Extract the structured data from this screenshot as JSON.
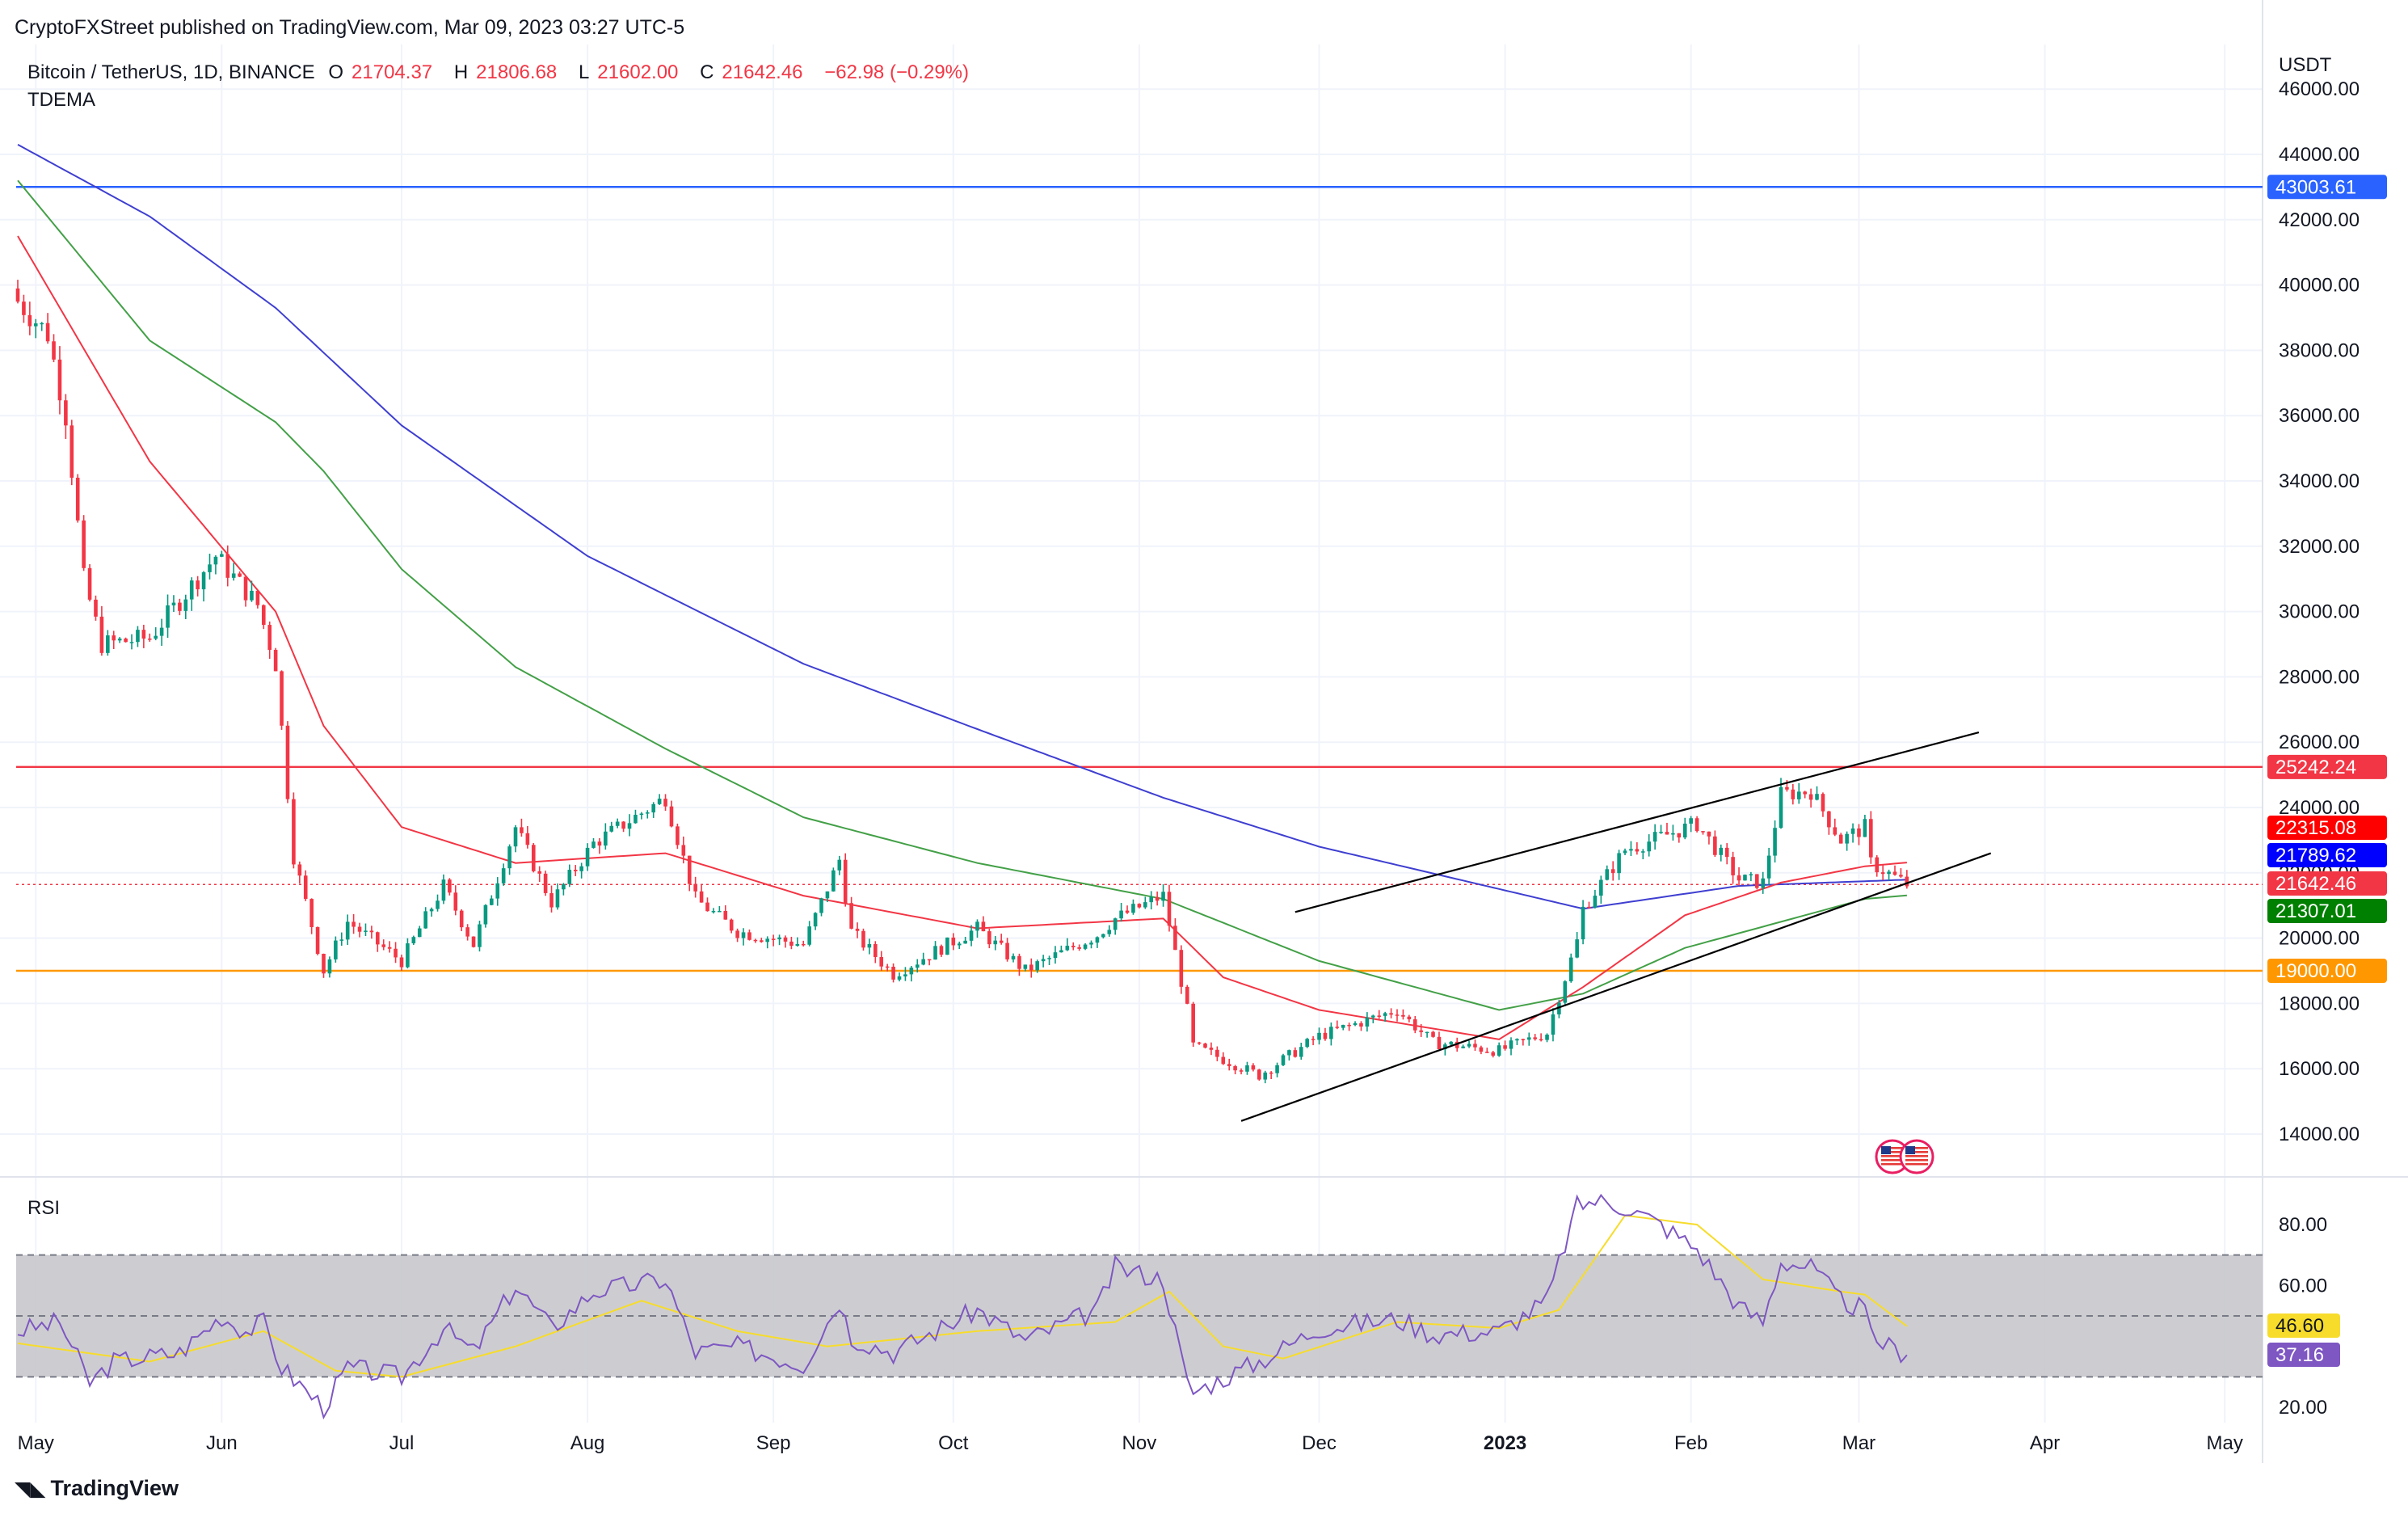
{
  "header": {
    "publisher": "CryptoFXStreet published on TradingView.com, Mar 09, 2023 03:27 UTC-5",
    "symbol": "Bitcoin / TetherUS, 1D, BINANCE",
    "open_label": "O",
    "open": "21704.37",
    "high_label": "H",
    "high": "21806.68",
    "low_label": "L",
    "low": "21602.00",
    "close_label": "C",
    "close": "21642.46",
    "change": "−62.98 (−0.29%)",
    "indicator": "TDEMA",
    "currency": "USDT"
  },
  "rsi_panel": {
    "name": "RSI"
  },
  "footer": {
    "brand": "TradingView"
  },
  "colors": {
    "up": "#089981",
    "down": "#f23645",
    "ema_fast": "#f23645",
    "ema_mid": "#43a047",
    "ema_slow": "#3f3fd1",
    "line_43003": "#2962ff",
    "line_25242": "#f23645",
    "line_19000": "#ff9800",
    "rsi": "#7e57c2",
    "rsi_ma": "#f7dc2b",
    "rsi_band": "#c4c4c9"
  },
  "chart_data": [
    {
      "type": "candlestick",
      "title": "Bitcoin / TetherUS, 1D, BINANCE",
      "ylim": [
        13000,
        47000
      ],
      "y_ticks": [
        "46000.00",
        "44000.00",
        "42000.00",
        "40000.00",
        "38000.00",
        "36000.00",
        "34000.00",
        "32000.00",
        "30000.00",
        "28000.00",
        "26000.00",
        "24000.00",
        "22000.00",
        "20000.00",
        "18000.00",
        "16000.00",
        "14000.00"
      ],
      "x_ticks": [
        "May",
        "Jun",
        "Jul",
        "Aug",
        "Sep",
        "Oct",
        "Nov",
        "Dec",
        "2023",
        "Feb",
        "Mar",
        "Apr",
        "May"
      ],
      "x_range": [
        "2022-04-28",
        "2023-05-10"
      ],
      "price_anchors": [
        [
          "2022-04-28",
          39500
        ],
        [
          "2022-05-03",
          38500
        ],
        [
          "2022-05-06",
          36000
        ],
        [
          "2022-05-09",
          31000
        ],
        [
          "2022-05-12",
          29000
        ],
        [
          "2022-05-20",
          29200
        ],
        [
          "2022-05-31",
          31700
        ],
        [
          "2022-06-07",
          30200
        ],
        [
          "2022-06-10",
          28400
        ],
        [
          "2022-06-13",
          22500
        ],
        [
          "2022-06-18",
          19000
        ],
        [
          "2022-06-22",
          20500
        ],
        [
          "2022-07-01",
          19300
        ],
        [
          "2022-07-08",
          21600
        ],
        [
          "2022-07-13",
          19800
        ],
        [
          "2022-07-20",
          23400
        ],
        [
          "2022-07-26",
          21100
        ],
        [
          "2022-08-02",
          22900
        ],
        [
          "2022-08-14",
          24300
        ],
        [
          "2022-08-19",
          21200
        ],
        [
          "2022-08-26",
          20200
        ],
        [
          "2022-09-06",
          19800
        ],
        [
          "2022-09-12",
          22400
        ],
        [
          "2022-09-14",
          20200
        ],
        [
          "2022-09-21",
          18900
        ],
        [
          "2022-10-05",
          20300
        ],
        [
          "2022-10-13",
          19000
        ],
        [
          "2022-10-25",
          20100
        ],
        [
          "2022-10-28",
          20600
        ],
        [
          "2022-11-05",
          21300
        ],
        [
          "2022-11-09",
          17800
        ],
        [
          "2022-11-10",
          16700
        ],
        [
          "2022-11-21",
          15800
        ],
        [
          "2022-12-01",
          17000
        ],
        [
          "2022-12-14",
          17800
        ],
        [
          "2022-12-20",
          16800
        ],
        [
          "2022-12-31",
          16550
        ],
        [
          "2023-01-08",
          17100
        ],
        [
          "2023-01-13",
          19900
        ],
        [
          "2023-01-14",
          20900
        ],
        [
          "2023-01-21",
          22700
        ],
        [
          "2023-02-02",
          23500
        ],
        [
          "2023-02-09",
          21800
        ],
        [
          "2023-02-13",
          21700
        ],
        [
          "2023-02-16",
          24400
        ],
        [
          "2023-02-21",
          24500
        ],
        [
          "2023-02-26",
          23000
        ],
        [
          "2023-03-02",
          23400
        ],
        [
          "2023-03-03",
          22300
        ],
        [
          "2023-03-09",
          21642
        ]
      ],
      "ema_fast_anchors": [
        [
          "2022-04-28",
          41500
        ],
        [
          "2022-05-20",
          34600
        ],
        [
          "2022-06-10",
          30000
        ],
        [
          "2022-06-18",
          26500
        ],
        [
          "2022-07-01",
          23400
        ],
        [
          "2022-07-20",
          22300
        ],
        [
          "2022-08-14",
          22600
        ],
        [
          "2022-09-06",
          21300
        ],
        [
          "2022-10-05",
          20300
        ],
        [
          "2022-11-05",
          20600
        ],
        [
          "2022-11-15",
          18800
        ],
        [
          "2022-12-01",
          17800
        ],
        [
          "2022-12-31",
          16900
        ],
        [
          "2023-01-14",
          18500
        ],
        [
          "2023-01-31",
          20700
        ],
        [
          "2023-02-16",
          21700
        ],
        [
          "2023-03-02",
          22200
        ],
        [
          "2023-03-09",
          22315
        ]
      ],
      "ema_mid_anchors": [
        [
          "2022-04-28",
          43200
        ],
        [
          "2022-05-20",
          38300
        ],
        [
          "2022-06-10",
          35800
        ],
        [
          "2022-06-18",
          34300
        ],
        [
          "2022-07-01",
          31300
        ],
        [
          "2022-07-20",
          28300
        ],
        [
          "2022-08-14",
          25800
        ],
        [
          "2022-09-06",
          23700
        ],
        [
          "2022-10-05",
          22300
        ],
        [
          "2022-11-05",
          21200
        ],
        [
          "2022-12-01",
          19300
        ],
        [
          "2022-12-31",
          17800
        ],
        [
          "2023-01-14",
          18300
        ],
        [
          "2023-01-31",
          19700
        ],
        [
          "2023-02-16",
          20500
        ],
        [
          "2023-03-02",
          21200
        ],
        [
          "2023-03-09",
          21307
        ]
      ],
      "ema_slow_anchors": [
        [
          "2022-04-28",
          44300
        ],
        [
          "2022-05-20",
          42100
        ],
        [
          "2022-06-10",
          39300
        ],
        [
          "2022-07-01",
          35700
        ],
        [
          "2022-08-01",
          31700
        ],
        [
          "2022-09-06",
          28400
        ],
        [
          "2022-10-05",
          26400
        ],
        [
          "2022-11-05",
          24300
        ],
        [
          "2022-12-01",
          22800
        ],
        [
          "2023-01-14",
          20900
        ],
        [
          "2023-02-09",
          21600
        ],
        [
          "2023-03-09",
          21790
        ]
      ],
      "horizontal_levels": [
        {
          "value": 43003.61,
          "label": "43003.61"
        },
        {
          "value": 25242.24,
          "label": "25242.24"
        },
        {
          "value": 19000.0,
          "label": "19000.00"
        }
      ],
      "price_tags": [
        "22315.08",
        "21789.62",
        "21642.46",
        "21307.01"
      ],
      "channel_upper": [
        [
          "2022-11-27",
          20800
        ],
        [
          "2023-03-21",
          26300
        ]
      ],
      "channel_lower": [
        [
          "2022-11-18",
          14400
        ],
        [
          "2023-03-23",
          22600
        ]
      ]
    },
    {
      "type": "line",
      "title": "RSI",
      "ylim": [
        15,
        95
      ],
      "y_ticks": [
        "80.00",
        "60.00",
        "20.00"
      ],
      "band": [
        30,
        70
      ],
      "midline": 50,
      "rsi_anchors": [
        [
          "2022-04-28",
          45
        ],
        [
          "2022-05-05",
          48
        ],
        [
          "2022-05-10",
          28
        ],
        [
          "2022-05-14",
          35
        ],
        [
          "2022-05-25",
          38
        ],
        [
          "2022-06-01",
          50
        ],
        [
          "2022-06-05",
          45
        ],
        [
          "2022-06-08",
          48
        ],
        [
          "2022-06-11",
          33
        ],
        [
          "2022-06-18",
          20
        ],
        [
          "2022-06-22",
          33
        ],
        [
          "2022-07-01",
          30
        ],
        [
          "2022-07-08",
          46
        ],
        [
          "2022-07-13",
          38
        ],
        [
          "2022-07-20",
          60
        ],
        [
          "2022-07-26",
          46
        ],
        [
          "2022-08-02",
          58
        ],
        [
          "2022-08-14",
          62
        ],
        [
          "2022-08-19",
          38
        ],
        [
          "2022-08-26",
          40
        ],
        [
          "2022-09-06",
          34
        ],
        [
          "2022-09-12",
          55
        ],
        [
          "2022-09-14",
          43
        ],
        [
          "2022-09-21",
          38
        ],
        [
          "2022-10-05",
          52
        ],
        [
          "2022-10-13",
          42
        ],
        [
          "2022-10-25",
          52
        ],
        [
          "2022-10-28",
          66
        ],
        [
          "2022-11-05",
          62
        ],
        [
          "2022-11-09",
          28
        ],
        [
          "2022-11-10",
          25
        ],
        [
          "2022-11-21",
          35
        ],
        [
          "2022-12-01",
          46
        ],
        [
          "2022-12-14",
          49
        ],
        [
          "2022-12-20",
          44
        ],
        [
          "2022-12-31",
          45
        ],
        [
          "2023-01-08",
          55
        ],
        [
          "2023-01-13",
          86
        ],
        [
          "2023-01-16",
          88
        ],
        [
          "2023-01-21",
          86
        ],
        [
          "2023-01-27",
          80
        ],
        [
          "2023-02-02",
          72
        ],
        [
          "2023-02-09",
          53
        ],
        [
          "2023-02-13",
          48
        ],
        [
          "2023-02-16",
          68
        ],
        [
          "2023-02-21",
          66
        ],
        [
          "2023-02-26",
          55
        ],
        [
          "2023-03-02",
          52
        ],
        [
          "2023-03-03",
          43
        ],
        [
          "2023-03-09",
          37.16
        ]
      ],
      "rsi_ma_anchors": [
        [
          "2022-04-28",
          41
        ],
        [
          "2022-05-20",
          35
        ],
        [
          "2022-06-08",
          45
        ],
        [
          "2022-06-20",
          32
        ],
        [
          "2022-07-01",
          30
        ],
        [
          "2022-07-20",
          40
        ],
        [
          "2022-08-10",
          55
        ],
        [
          "2022-08-26",
          45
        ],
        [
          "2022-09-10",
          40
        ],
        [
          "2022-10-05",
          45
        ],
        [
          "2022-10-28",
          48
        ],
        [
          "2022-11-06",
          58
        ],
        [
          "2022-11-15",
          40
        ],
        [
          "2022-11-25",
          36
        ],
        [
          "2022-12-14",
          48
        ],
        [
          "2022-12-31",
          46
        ],
        [
          "2023-01-10",
          52
        ],
        [
          "2023-01-21",
          83
        ],
        [
          "2023-02-02",
          80
        ],
        [
          "2023-02-13",
          62
        ],
        [
          "2023-02-26",
          58
        ],
        [
          "2023-03-02",
          57
        ],
        [
          "2023-03-09",
          46.6
        ]
      ],
      "tags": [
        "46.60",
        "37.16"
      ]
    }
  ]
}
